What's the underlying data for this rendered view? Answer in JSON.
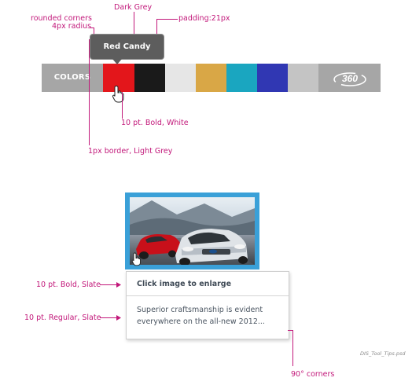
{
  "annotations": {
    "rounded_corners": "rounded corners",
    "radius": "4px radius",
    "dark_grey": "Dark Grey",
    "padding": "padding:21px",
    "bold_white": "10 pt. Bold, White",
    "border": "1px border, Light Grey",
    "bold_slate": "10 pt. Bold, Slate",
    "regular_slate": "10 pt. Regular, Slate",
    "corners": "90° corners"
  },
  "color_bar": {
    "label": "COLORS",
    "swatches": [
      "#e3161b",
      "#1a1a1a",
      "#e6e6e6",
      "#d9a746",
      "#1aa6c0",
      "#3037b3",
      "#c4c4c4"
    ],
    "rotate_label": "360"
  },
  "tooltip": {
    "text": "Red Candy"
  },
  "info_card": {
    "title": "Click image to enlarge",
    "body_line1": "Superior craftsmanship is evident",
    "body_line2": "everywhere on the all-new 2012..."
  },
  "filename": "DIS_Tool_Tips.psd",
  "colors": {
    "annotation": "#c2187a",
    "tooltip_bg": "#5d5d5d",
    "bar_bg": "#a6a6a6",
    "frame": "#3aa0d8"
  }
}
